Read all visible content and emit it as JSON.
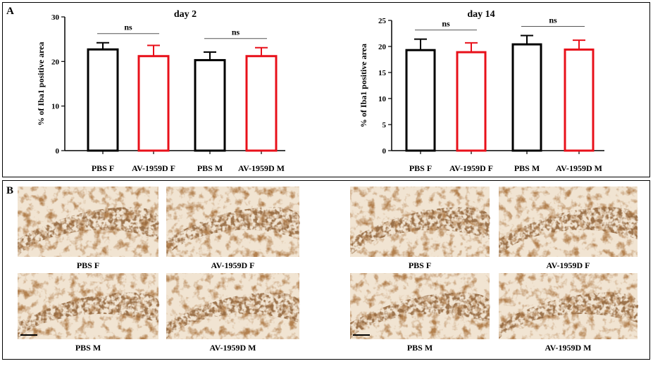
{
  "panel_labels": [
    "A",
    "B"
  ],
  "chart_data": [
    {
      "type": "bar",
      "title": "day 2",
      "y_label": "% of Iba1 positive area",
      "categories": [
        "PBS F",
        "AV-1959D F",
        "PBS M",
        "AV-1959D M"
      ],
      "values": [
        22.7,
        21.2,
        20.3,
        21.2
      ],
      "errors": [
        1.5,
        2.4,
        1.8,
        1.9
      ],
      "colors": [
        "#000000",
        "#e8101a",
        "#000000",
        "#e8101a"
      ],
      "ylim": [
        0,
        30
      ],
      "yticks": [
        0,
        10,
        20,
        30
      ],
      "annotations": [
        "ns",
        "ns"
      ]
    },
    {
      "type": "bar",
      "title": "day 14",
      "y_label": "% of Iba1 positive area",
      "categories": [
        "PBS F",
        "AV-1959D F",
        "PBS M",
        "AV-1959D M"
      ],
      "values": [
        19.3,
        18.9,
        20.4,
        19.4
      ],
      "errors": [
        2.1,
        1.8,
        1.7,
        1.8
      ],
      "colors": [
        "#000000",
        "#e8101a",
        "#000000",
        "#e8101a"
      ],
      "ylim": [
        0,
        25
      ],
      "yticks": [
        0,
        5,
        10,
        15,
        20,
        25
      ],
      "annotations": [
        "ns",
        "ns"
      ]
    }
  ],
  "image_captions": [
    [
      "PBS F",
      "AV-1959D F",
      "PBS M",
      "AV-1959D M"
    ],
    [
      "PBS F",
      "AV-1959D F",
      "PBS M",
      "AV-1959D M"
    ]
  ]
}
